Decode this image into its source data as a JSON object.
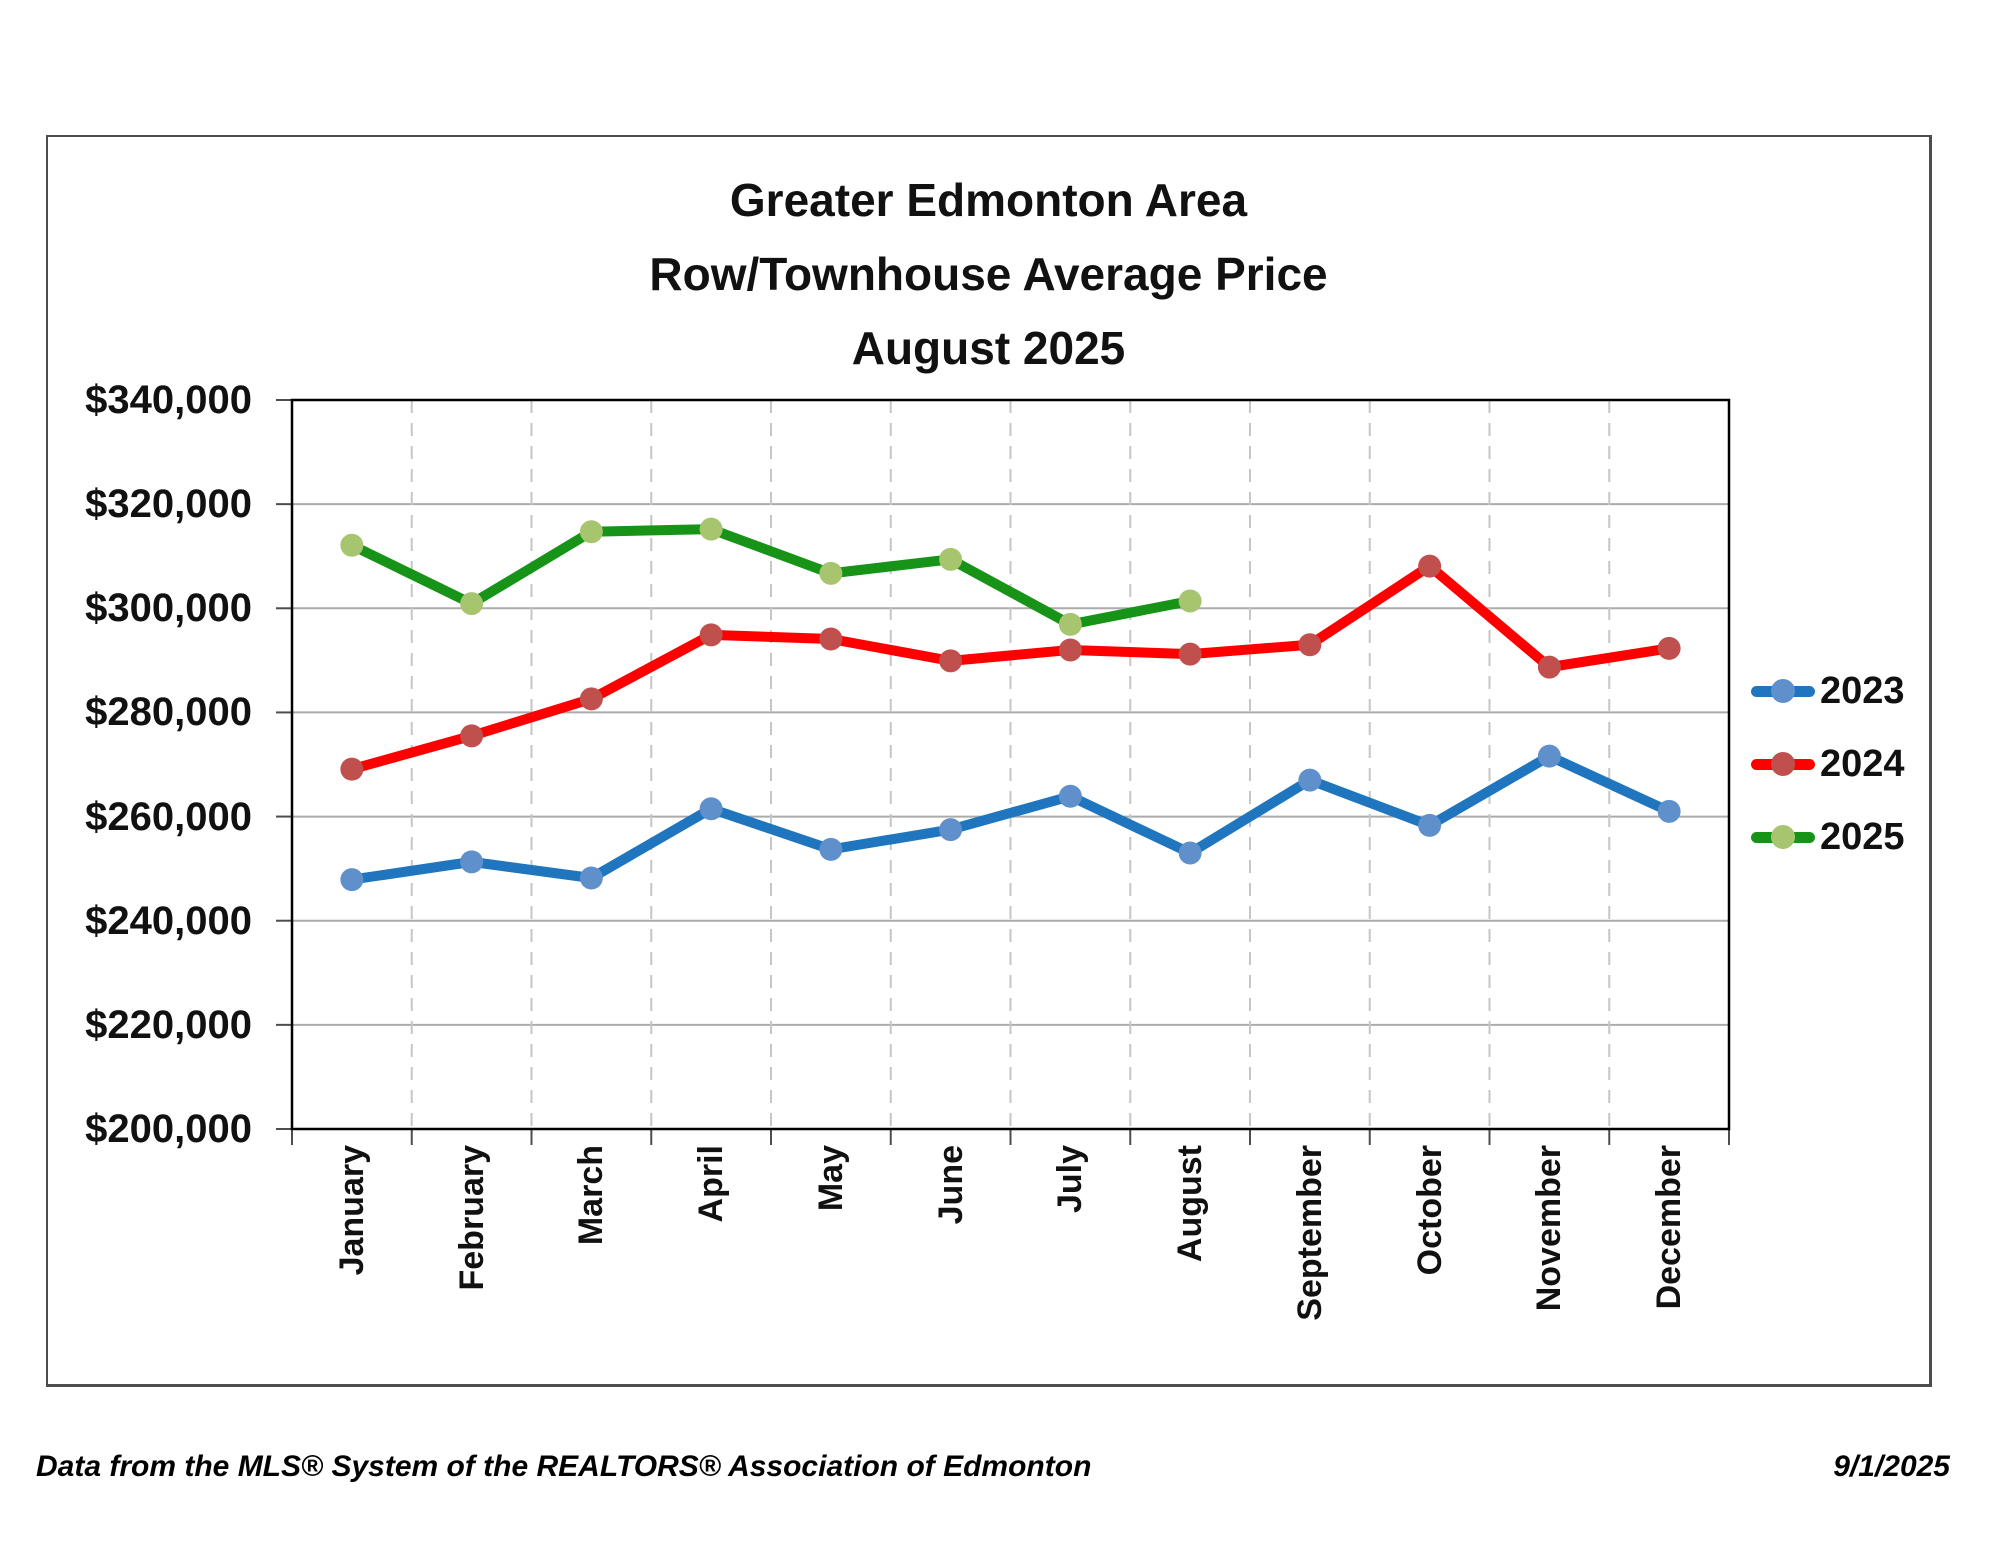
{
  "page": {
    "title_lines": [
      "Greater Edmonton Area",
      "Row/Townhouse Average Price",
      "August 2025"
    ],
    "footer_left": "Data from the MLS® System of the REALTORS® Association of Edmonton",
    "footer_right": "9/1/2025"
  },
  "chart_data": {
    "type": "line",
    "title": "Greater Edmonton Area Row/Townhouse Average Price August 2025",
    "categories": [
      "January",
      "February",
      "March",
      "April",
      "May",
      "June",
      "July",
      "August",
      "September",
      "October",
      "November",
      "December"
    ],
    "xlabel": "",
    "ylabel": "",
    "ylim": [
      200000,
      340000
    ],
    "ystep": 20000,
    "y_tick_labels": [
      "$340,000",
      "$320,000",
      "$300,000",
      "$280,000",
      "$260,000",
      "$240,000",
      "$220,000",
      "$200,000"
    ],
    "grid": {
      "horizontal": "solid",
      "vertical": "dashed"
    },
    "legend_position": "right",
    "series": [
      {
        "name": "2023",
        "line_color": "#1F76BE",
        "marker_color": "#6090CB",
        "values": [
          247900,
          251300,
          248200,
          261500,
          253700,
          257500,
          263900,
          253000,
          267000,
          258300,
          271600,
          261000
        ]
      },
      {
        "name": "2024",
        "line_color": "#FE0000",
        "marker_color": "#C0504D",
        "values": [
          269100,
          275500,
          282600,
          294900,
          294100,
          289900,
          292000,
          291200,
          293000,
          308100,
          288700,
          292300
        ]
      },
      {
        "name": "2025",
        "line_color": "#179417",
        "marker_color": "#A7C46F",
        "values": [
          312100,
          300900,
          314700,
          315200,
          306700,
          309400,
          296900,
          301400
        ]
      }
    ]
  }
}
